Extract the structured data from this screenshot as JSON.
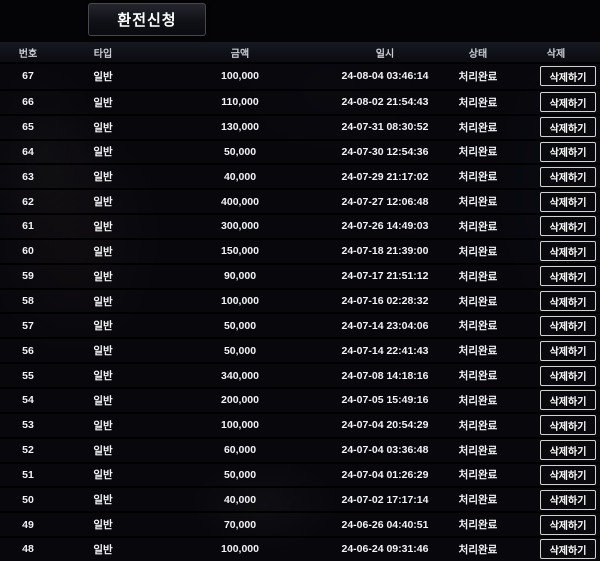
{
  "page": {
    "apply_button_label": "환전신청"
  },
  "table": {
    "columns": [
      "번호",
      "타입",
      "금액",
      "일시",
      "상태",
      "삭제"
    ],
    "delete_button_label": "삭제하기",
    "rows": [
      {
        "no": "67",
        "type": "일반",
        "amount": "100,000",
        "datetime": "24-08-04 03:46:14",
        "status": "처리완료"
      },
      {
        "no": "66",
        "type": "일반",
        "amount": "110,000",
        "datetime": "24-08-02 21:54:43",
        "status": "처리완료"
      },
      {
        "no": "65",
        "type": "일반",
        "amount": "130,000",
        "datetime": "24-07-31 08:30:52",
        "status": "처리완료"
      },
      {
        "no": "64",
        "type": "일반",
        "amount": "50,000",
        "datetime": "24-07-30 12:54:36",
        "status": "처리완료"
      },
      {
        "no": "63",
        "type": "일반",
        "amount": "40,000",
        "datetime": "24-07-29 21:17:02",
        "status": "처리완료"
      },
      {
        "no": "62",
        "type": "일반",
        "amount": "400,000",
        "datetime": "24-07-27 12:06:48",
        "status": "처리완료"
      },
      {
        "no": "61",
        "type": "일반",
        "amount": "300,000",
        "datetime": "24-07-26 14:49:03",
        "status": "처리완료"
      },
      {
        "no": "60",
        "type": "일반",
        "amount": "150,000",
        "datetime": "24-07-18 21:39:00",
        "status": "처리완료"
      },
      {
        "no": "59",
        "type": "일반",
        "amount": "90,000",
        "datetime": "24-07-17 21:51:12",
        "status": "처리완료"
      },
      {
        "no": "58",
        "type": "일반",
        "amount": "100,000",
        "datetime": "24-07-16 02:28:32",
        "status": "처리완료"
      },
      {
        "no": "57",
        "type": "일반",
        "amount": "50,000",
        "datetime": "24-07-14 23:04:06",
        "status": "처리완료"
      },
      {
        "no": "56",
        "type": "일반",
        "amount": "50,000",
        "datetime": "24-07-14 22:41:43",
        "status": "처리완료"
      },
      {
        "no": "55",
        "type": "일반",
        "amount": "340,000",
        "datetime": "24-07-08 14:18:16",
        "status": "처리완료"
      },
      {
        "no": "54",
        "type": "일반",
        "amount": "200,000",
        "datetime": "24-07-05 15:49:16",
        "status": "처리완료"
      },
      {
        "no": "53",
        "type": "일반",
        "amount": "100,000",
        "datetime": "24-07-04 20:54:29",
        "status": "처리완료"
      },
      {
        "no": "52",
        "type": "일반",
        "amount": "60,000",
        "datetime": "24-07-04 03:36:48",
        "status": "처리완료"
      },
      {
        "no": "51",
        "type": "일반",
        "amount": "50,000",
        "datetime": "24-07-04 01:26:29",
        "status": "처리완료"
      },
      {
        "no": "50",
        "type": "일반",
        "amount": "40,000",
        "datetime": "24-07-02 17:17:14",
        "status": "처리완료"
      },
      {
        "no": "49",
        "type": "일반",
        "amount": "70,000",
        "datetime": "24-06-26 04:40:51",
        "status": "처리완료"
      },
      {
        "no": "48",
        "type": "일반",
        "amount": "100,000",
        "datetime": "24-06-24 09:31:46",
        "status": "처리완료"
      }
    ]
  },
  "colors": {
    "background": "#06060a",
    "header_bar": "#14161d",
    "row_separator": "#000000",
    "text": "#f2f3f5",
    "delete_button_border": "#d2d2d2"
  }
}
